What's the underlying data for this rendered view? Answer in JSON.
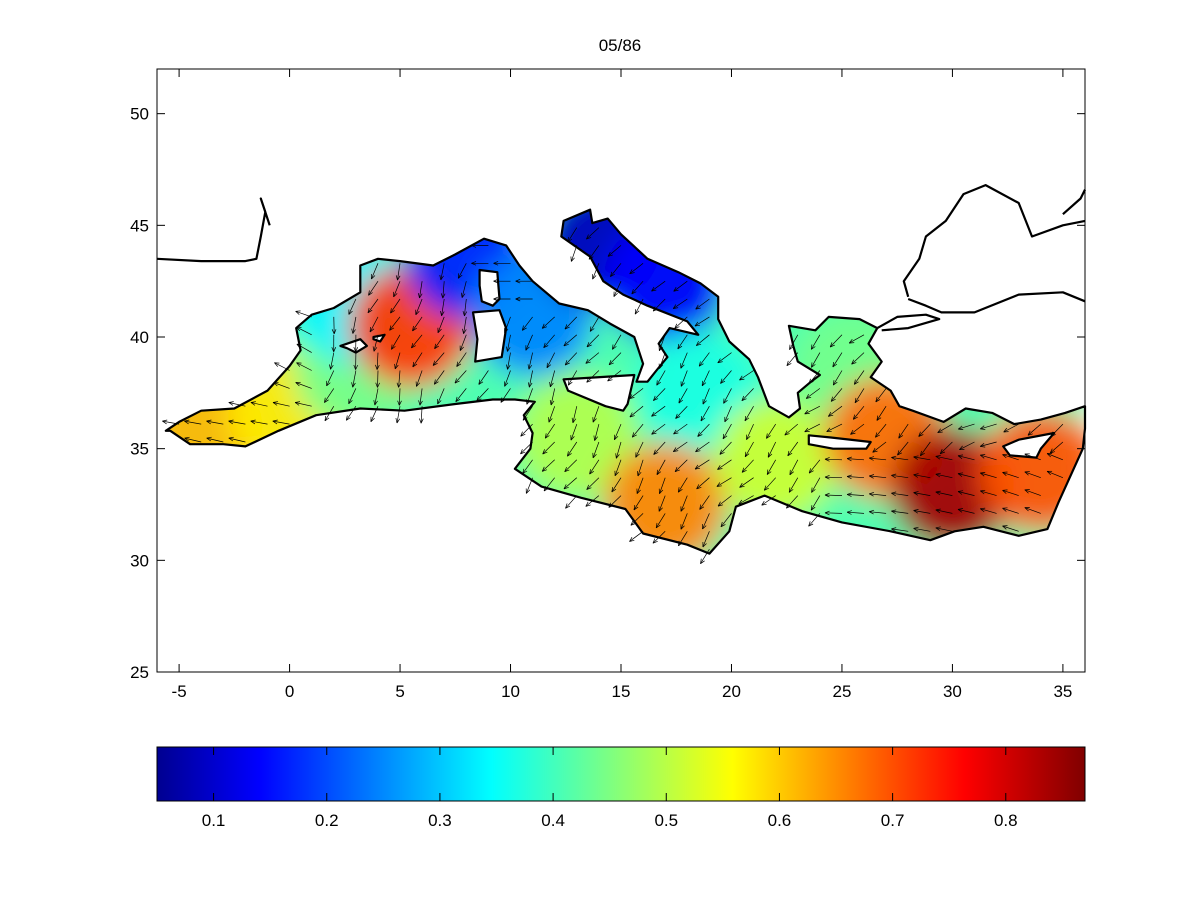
{
  "figure": {
    "title": "05/86"
  },
  "chart_data": {
    "type": "heatmap",
    "title": "05/86",
    "xlabel": "",
    "ylabel": "",
    "xlim": [
      -6,
      36
    ],
    "ylim": [
      25,
      52
    ],
    "x_ticks": [
      -5,
      0,
      5,
      10,
      15,
      20,
      25,
      30,
      35
    ],
    "y_ticks": [
      25,
      30,
      35,
      40,
      45,
      50
    ],
    "colorbar": {
      "colormap": "jet",
      "range": [
        0.05,
        0.87
      ],
      "ticks": [
        0.1,
        0.2,
        0.3,
        0.4,
        0.5,
        0.6,
        0.7,
        0.8
      ],
      "orientation": "horizontal"
    },
    "vector_field": "wind-arrows",
    "field_samples": [
      {
        "lon": -4,
        "lat": 35.8,
        "value": 0.62
      },
      {
        "lon": 0,
        "lat": 36.6,
        "value": 0.58
      },
      {
        "lon": 3,
        "lat": 38.5,
        "value": 0.45
      },
      {
        "lon": 3,
        "lat": 41.5,
        "value": 0.35
      },
      {
        "lon": 5.5,
        "lat": 40.5,
        "value": 0.72
      },
      {
        "lon": 8,
        "lat": 43.6,
        "value": 0.18
      },
      {
        "lon": 11,
        "lat": 41,
        "value": 0.26
      },
      {
        "lon": 14,
        "lat": 44.2,
        "value": 0.1
      },
      {
        "lon": 17,
        "lat": 42.5,
        "value": 0.15
      },
      {
        "lon": 18.5,
        "lat": 37.5,
        "value": 0.38
      },
      {
        "lon": 13,
        "lat": 35.5,
        "value": 0.5
      },
      {
        "lon": 17,
        "lat": 32.5,
        "value": 0.66
      },
      {
        "lon": 22,
        "lat": 34.5,
        "value": 0.52
      },
      {
        "lon": 25.5,
        "lat": 38.5,
        "value": 0.45
      },
      {
        "lon": 27,
        "lat": 35.5,
        "value": 0.68
      },
      {
        "lon": 30,
        "lat": 33.2,
        "value": 0.84
      },
      {
        "lon": 34,
        "lat": 34,
        "value": 0.7
      }
    ]
  }
}
